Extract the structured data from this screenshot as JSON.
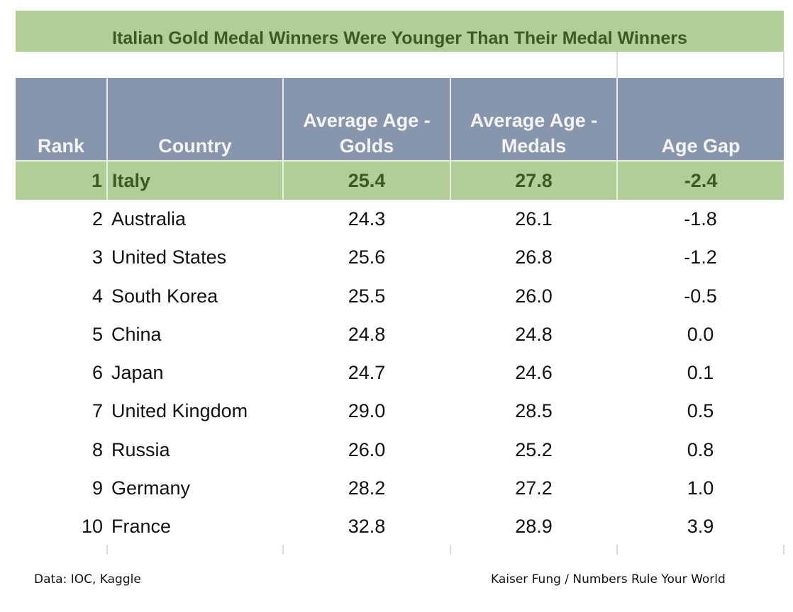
{
  "chart_data": {
    "type": "table",
    "title": "Italian Gold Medal Winners Were Younger Than Their Medal Winners",
    "columns": [
      "Rank",
      "Country",
      "Average Age - Golds",
      "Average Age - Medals",
      "Age Gap"
    ],
    "header_lines": [
      [
        "Rank"
      ],
      [
        "Country"
      ],
      [
        "Average Age -",
        "Golds"
      ],
      [
        "Average Age -",
        "Medals"
      ],
      [
        "Age Gap"
      ]
    ],
    "rows": [
      [
        "1",
        "Italy",
        "25.4",
        "27.8",
        "-2.4"
      ],
      [
        "2",
        "Australia",
        "24.3",
        "26.1",
        "-1.8"
      ],
      [
        "3",
        "United States",
        "25.6",
        "26.8",
        "-1.2"
      ],
      [
        "4",
        "South Korea",
        "25.5",
        "26.0",
        "-0.5"
      ],
      [
        "5",
        "China",
        "24.8",
        "24.8",
        "0.0"
      ],
      [
        "6",
        "Japan",
        "24.7",
        "24.6",
        "0.1"
      ],
      [
        "7",
        "United Kingdom",
        "29.0",
        "28.5",
        "0.5"
      ],
      [
        "8",
        "Russia",
        "26.0",
        "25.2",
        "0.8"
      ],
      [
        "9",
        "Germany",
        "28.2",
        "27.2",
        "1.0"
      ],
      [
        "10",
        "France",
        "32.8",
        "28.9",
        "3.9"
      ]
    ],
    "highlight_row": 0,
    "colors": {
      "header": "#8796ad",
      "highlight": "#b1ce96",
      "highlight_text": "#3d5a25"
    }
  },
  "footer": {
    "source": "Data: IOC, Kaggle",
    "credit": "Kaiser Fung / Numbers Rule Your World"
  }
}
